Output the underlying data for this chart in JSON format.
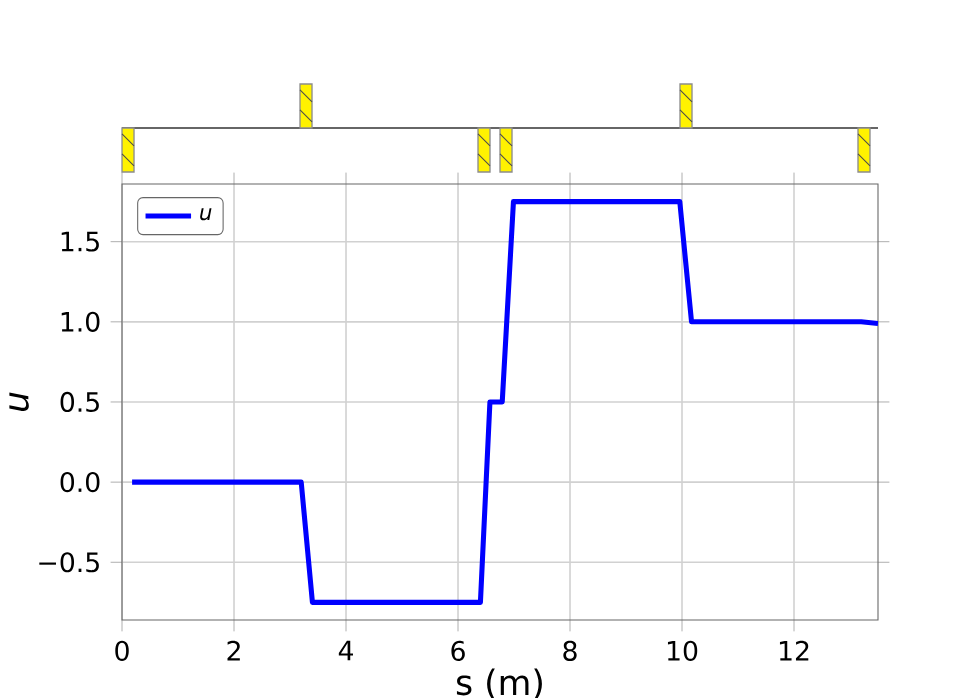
{
  "chart_data": {
    "type": "line",
    "xlabel": "s (m)",
    "ylabel": "u",
    "series": [
      {
        "name": "u",
        "color": "#0000ff",
        "x": [
          0.18,
          3.2,
          3.4,
          6.4,
          6.57,
          6.79,
          6.99,
          9.96,
          10.17,
          13.2,
          13.5
        ],
        "values": [
          0,
          0,
          -0.75,
          -0.75,
          0.5,
          0.5,
          1.75,
          1.75,
          1.0,
          1.0,
          0.99
        ]
      }
    ],
    "xlim": [
      0,
      13.5
    ],
    "ylim": [
      -0.86,
      1.86
    ],
    "xticks": [
      0,
      2,
      4,
      6,
      8,
      10,
      12
    ],
    "yticks": [
      {
        "value": -0.5,
        "label": "−0.5"
      },
      {
        "value": 0,
        "label": "0.0"
      },
      {
        "value": 0.5,
        "label": "0.5"
      },
      {
        "value": 1.0,
        "label": "1.0"
      },
      {
        "value": 1.5,
        "label": "1.5"
      }
    ],
    "grid": true,
    "legend": "top left",
    "line_style": "solid",
    "marker": "none"
  }
}
